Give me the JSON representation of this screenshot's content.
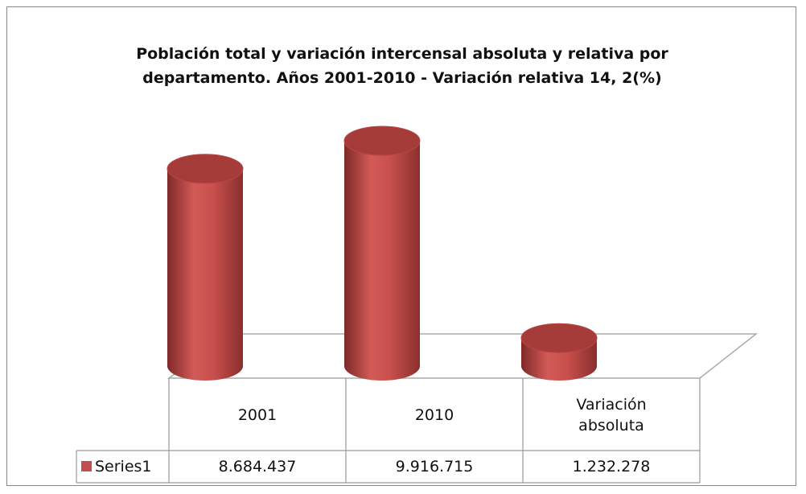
{
  "chart_data": {
    "type": "bar",
    "title": "Población total y variación intercensal absoluta y relativa por departamento. Años 2001-2010 - Variación relativa 14, 2(%)",
    "categories": [
      "2001",
      "2010",
      "Variación absoluta"
    ],
    "series": [
      {
        "name": "Series1",
        "color": "#c0504d",
        "values": [
          8684437,
          9916715,
          1232278
        ],
        "value_labels": [
          "8.684.437",
          "9.916.715",
          "1.232.278"
        ]
      }
    ]
  }
}
